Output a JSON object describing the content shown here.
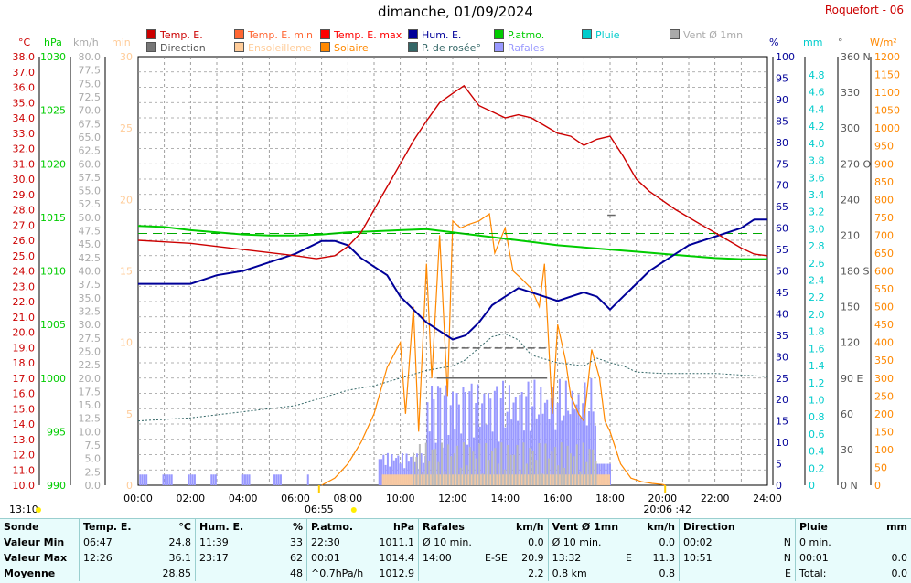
{
  "title": "dimanche, 01/09/2024",
  "station": "Roquefort - 06",
  "legend": [
    {
      "label": "Temp. E.",
      "color": "#cc0000",
      "text_color": "#cc0000"
    },
    {
      "label": "Temp. E. min",
      "color": "#ff6633",
      "text_color": "#ff6633"
    },
    {
      "label": "Temp. E. max",
      "color": "#ff0000",
      "text_color": "#ff0000"
    },
    {
      "label": "Hum. E.",
      "color": "#000099",
      "text_color": "#000099"
    },
    {
      "label": "P.atmo.",
      "color": "#00cc00",
      "text_color": "#00cc00"
    },
    {
      "label": "Pluie",
      "color": "#00cccc",
      "text_color": "#00cccc"
    },
    {
      "label": "Vent Ø 1mn",
      "color": "#aaaaaa",
      "text_color": "#aaaaaa"
    },
    {
      "label": "Direction",
      "color": "#777777",
      "text_color": "#555555"
    },
    {
      "label": "Ensoleilleme",
      "color": "#ffcc99",
      "text_color": "#ffcc99"
    },
    {
      "label": "Solaire",
      "color": "#ff8800",
      "text_color": "#ff8800"
    },
    {
      "label": "P. de rosée°",
      "color": "#336666",
      "text_color": "#336666"
    },
    {
      "label": "Rafales",
      "color": "#9999ff",
      "text_color": "#9999ff"
    }
  ],
  "axes": {
    "temp_unit": "°C",
    "pa_unit": "hPa",
    "wind_unit": "km/h",
    "min_unit": "min",
    "hum_unit": "%",
    "rain_unit": "mm",
    "dir_unit": "°",
    "sol_unit": "W/m²",
    "temp_ticks": [
      "38.0",
      "37.0",
      "36.0",
      "35.0",
      "34.0",
      "33.0",
      "32.0",
      "31.0",
      "30.0",
      "29.0",
      "28.0",
      "27.0",
      "26.0",
      "25.0",
      "24.0",
      "23.0",
      "22.0",
      "21.0",
      "20.0",
      "19.0",
      "18.0",
      "17.0",
      "16.0",
      "15.0",
      "14.0",
      "13.0",
      "12.0",
      "11.0",
      "10.0"
    ],
    "pa_ticks": [
      "1030",
      "1025",
      "1020",
      "1015",
      "1010",
      "1005",
      "1000",
      "995",
      "990"
    ],
    "wind_ticks": [
      "80.0",
      "77.5",
      "75.0",
      "72.5",
      "70.0",
      "67.5",
      "65.0",
      "62.5",
      "60.0",
      "57.5",
      "55.0",
      "52.5",
      "50.0",
      "47.5",
      "45.0",
      "42.5",
      "40.0",
      "37.5",
      "35.0",
      "32.5",
      "30.0",
      "27.5",
      "25.0",
      "22.5",
      "20.0",
      "17.5",
      "15.0",
      "12.5",
      "10.0",
      "7.5",
      "5.0",
      "2.5",
      "0.0"
    ],
    "min_ticks": [
      "30",
      "25",
      "20",
      "15",
      "10",
      "5",
      "0"
    ],
    "hum_ticks": [
      "100",
      "95",
      "90",
      "85",
      "80",
      "75",
      "70",
      "65",
      "60",
      "55",
      "50",
      "45",
      "40",
      "35",
      "30",
      "25",
      "20",
      "15",
      "10",
      "5",
      "0"
    ],
    "rain_ticks": [
      "4.8",
      "4.6",
      "4.4",
      "4.2",
      "4.0",
      "3.8",
      "3.6",
      "3.4",
      "3.2",
      "3.0",
      "2.8",
      "2.6",
      "2.4",
      "2.2",
      "2.0",
      "1.8",
      "1.6",
      "1.4",
      "1.2",
      "1.0",
      "0.8",
      "0.6",
      "0.4",
      "0.2",
      "0"
    ],
    "dir_ticks": [
      "360 N",
      "330",
      "300",
      "270 O",
      "240",
      "210",
      "180 S",
      "150",
      "120",
      "90 E",
      "60",
      "30",
      "0   N"
    ],
    "sol_ticks": [
      "1200",
      "1150",
      "1100",
      "1050",
      "1000",
      "950",
      "900",
      "850",
      "800",
      "750",
      "700",
      "650",
      "600",
      "550",
      "500",
      "450",
      "400",
      "350",
      "300",
      "250",
      "200",
      "150",
      "100",
      "50",
      "0"
    ],
    "time_ticks": [
      "00:00",
      "02:00",
      "04:00",
      "06:00",
      "08:00",
      "10:00",
      "12:00",
      "14:00",
      "16:00",
      "18:00",
      "20:00",
      "22:00",
      "24:00"
    ],
    "sunrise": "06:55",
    "sunset": "20:06",
    "moonrise": "13:10",
    "sun_extra": ":42",
    "moon_extra": "A"
  },
  "chart_data": {
    "type": "line",
    "title": "dimanche, 01/09/2024",
    "x_unit": "hour",
    "series": [
      {
        "name": "Temp. E.",
        "unit": "°C",
        "color": "#cc0000",
        "points": [
          [
            0,
            26.0
          ],
          [
            1,
            25.9
          ],
          [
            2,
            25.8
          ],
          [
            3,
            25.6
          ],
          [
            4,
            25.4
          ],
          [
            5,
            25.2
          ],
          [
            6,
            25.0
          ],
          [
            6.8,
            24.8
          ],
          [
            7.5,
            25.0
          ],
          [
            8,
            25.6
          ],
          [
            8.5,
            26.5
          ],
          [
            9,
            28.0
          ],
          [
            9.5,
            29.5
          ],
          [
            10,
            31.0
          ],
          [
            10.5,
            32.5
          ],
          [
            11,
            33.8
          ],
          [
            11.5,
            35.0
          ],
          [
            12,
            35.6
          ],
          [
            12.43,
            36.1
          ],
          [
            13,
            34.8
          ],
          [
            13.5,
            34.4
          ],
          [
            14,
            34.0
          ],
          [
            14.5,
            34.2
          ],
          [
            15,
            34.0
          ],
          [
            15.5,
            33.5
          ],
          [
            16,
            33.0
          ],
          [
            16.5,
            32.8
          ],
          [
            17,
            32.2
          ],
          [
            17.5,
            32.6
          ],
          [
            18,
            32.8
          ],
          [
            18.5,
            31.5
          ],
          [
            19,
            30.0
          ],
          [
            19.5,
            29.2
          ],
          [
            20,
            28.6
          ],
          [
            20.5,
            28.0
          ],
          [
            21,
            27.5
          ],
          [
            21.5,
            27.0
          ],
          [
            22,
            26.5
          ],
          [
            22.5,
            26.0
          ],
          [
            23,
            25.5
          ],
          [
            23.5,
            25.1
          ],
          [
            24,
            25.0
          ]
        ]
      },
      {
        "name": "Hum. E.",
        "unit": "%",
        "color": "#000099",
        "points": [
          [
            0,
            47
          ],
          [
            1.8,
            47
          ],
          [
            2,
            47
          ],
          [
            2.5,
            48
          ],
          [
            3,
            49
          ],
          [
            4,
            50
          ],
          [
            4.5,
            51
          ],
          [
            5,
            52
          ],
          [
            5.5,
            53
          ],
          [
            6,
            54
          ],
          [
            7,
            57
          ],
          [
            7.5,
            57
          ],
          [
            8,
            56
          ],
          [
            8.5,
            53
          ],
          [
            9,
            51
          ],
          [
            9.5,
            49
          ],
          [
            10,
            44
          ],
          [
            10.5,
            41
          ],
          [
            11,
            38
          ],
          [
            11.5,
            36
          ],
          [
            12,
            34
          ],
          [
            12.5,
            35
          ],
          [
            13,
            38
          ],
          [
            13.5,
            42
          ],
          [
            14,
            44
          ],
          [
            14.5,
            46
          ],
          [
            15,
            45
          ],
          [
            15.5,
            44
          ],
          [
            16,
            43
          ],
          [
            16.5,
            44
          ],
          [
            17,
            45
          ],
          [
            17.5,
            44
          ],
          [
            18,
            41
          ],
          [
            18.5,
            44
          ],
          [
            19,
            47
          ],
          [
            19.5,
            50
          ],
          [
            20,
            52
          ],
          [
            20.5,
            54
          ],
          [
            21,
            56
          ],
          [
            21.5,
            57
          ],
          [
            22,
            58
          ],
          [
            22.5,
            59
          ],
          [
            23,
            60
          ],
          [
            23.5,
            62
          ],
          [
            24,
            62
          ]
        ]
      },
      {
        "name": "P.atmo.",
        "unit": "hPa",
        "color": "#00cc00",
        "points": [
          [
            0,
            1014.2
          ],
          [
            1,
            1014.1
          ],
          [
            2,
            1013.8
          ],
          [
            3,
            1013.6
          ],
          [
            4,
            1013.4
          ],
          [
            5,
            1013.3
          ],
          [
            6,
            1013.3
          ],
          [
            7,
            1013.4
          ],
          [
            8,
            1013.6
          ],
          [
            9,
            1013.7
          ],
          [
            10,
            1013.8
          ],
          [
            11,
            1013.9
          ],
          [
            12,
            1013.6
          ],
          [
            13,
            1013.3
          ],
          [
            14,
            1013.0
          ],
          [
            15,
            1012.7
          ],
          [
            16,
            1012.4
          ],
          [
            17,
            1012.2
          ],
          [
            18,
            1012.0
          ],
          [
            19,
            1011.8
          ],
          [
            20,
            1011.6
          ],
          [
            21,
            1011.4
          ],
          [
            22,
            1011.2
          ],
          [
            23,
            1011.1
          ],
          [
            24,
            1011.1
          ]
        ]
      },
      {
        "name": "P. de rosée°",
        "unit": "°C",
        "color": "#336666",
        "points": [
          [
            0,
            14.2
          ],
          [
            2,
            14.4
          ],
          [
            4,
            14.8
          ],
          [
            6,
            15.2
          ],
          [
            8,
            16.2
          ],
          [
            9,
            16.5
          ],
          [
            10,
            17.0
          ],
          [
            11,
            17.5
          ],
          [
            12,
            17.8
          ],
          [
            12.5,
            18.2
          ],
          [
            13,
            19.0
          ],
          [
            13.5,
            19.7
          ],
          [
            14,
            19.9
          ],
          [
            14.5,
            19.5
          ],
          [
            15,
            18.5
          ],
          [
            16,
            18.0
          ],
          [
            17,
            17.8
          ],
          [
            17.5,
            18.3
          ],
          [
            18,
            18.0
          ],
          [
            18.5,
            17.8
          ],
          [
            19,
            17.4
          ],
          [
            20,
            17.3
          ],
          [
            21,
            17.3
          ],
          [
            22,
            17.3
          ],
          [
            23,
            17.2
          ],
          [
            24,
            17.1
          ]
        ]
      },
      {
        "name": "Solaire",
        "unit": "W/m²",
        "color": "#ff8800",
        "points": [
          [
            7,
            0
          ],
          [
            7.5,
            20
          ],
          [
            8,
            60
          ],
          [
            8.5,
            120
          ],
          [
            9,
            200
          ],
          [
            9.5,
            330
          ],
          [
            10,
            400
          ],
          [
            10.2,
            200
          ],
          [
            10.5,
            500
          ],
          [
            10.7,
            150
          ],
          [
            11,
            620
          ],
          [
            11.2,
            300
          ],
          [
            11.5,
            700
          ],
          [
            11.8,
            250
          ],
          [
            12,
            740
          ],
          [
            12.3,
            720
          ],
          [
            12.6,
            730
          ],
          [
            13,
            740
          ],
          [
            13.4,
            760
          ],
          [
            13.6,
            650
          ],
          [
            14,
            720
          ],
          [
            14.3,
            600
          ],
          [
            14.6,
            580
          ],
          [
            15,
            550
          ],
          [
            15.3,
            500
          ],
          [
            15.5,
            620
          ],
          [
            15.8,
            200
          ],
          [
            16,
            450
          ],
          [
            16.3,
            350
          ],
          [
            16.5,
            250
          ],
          [
            16.8,
            200
          ],
          [
            17,
            180
          ],
          [
            17.3,
            380
          ],
          [
            17.6,
            300
          ],
          [
            17.8,
            180
          ],
          [
            18,
            150
          ],
          [
            18.4,
            60
          ],
          [
            18.8,
            20
          ],
          [
            19.2,
            10
          ],
          [
            19.6,
            5
          ],
          [
            20,
            2
          ],
          [
            20.1,
            0
          ]
        ]
      }
    ],
    "extra_markers": {
      "t_min_dash_hour": 11.0,
      "pressure_ref_dashed": 1013.5
    }
  },
  "stats": {
    "headers": [
      "Sonde",
      "Temp. E.",
      "°C",
      "Hum. E.",
      "%",
      "P.atmo.",
      "hPa",
      "Rafales",
      "km/h",
      "Vent Ø 1mn",
      "km/h",
      "Direction",
      "",
      "Pluie",
      "mm"
    ],
    "rows": [
      {
        "label": "Valeur Min",
        "t_time": "06:47",
        "t_val": "24.8",
        "h_time": "11:39",
        "h_val": "33",
        "p_time": "22:30",
        "p_val": "1011.1",
        "r_time": "Ø 10 min.",
        "r_dir": "",
        "r_val": "0.0",
        "v_time": "Ø 10 min.",
        "v_dir": "",
        "v_val": "0.0",
        "d_time": "00:02",
        "d_val": "N",
        "pl_time": "0 min.",
        "pl_val": ""
      },
      {
        "label": "Valeur Max",
        "t_time": "12:26",
        "t_val": "36.1",
        "h_time": "23:17",
        "h_val": "62",
        "p_time": "00:01",
        "p_val": "1014.4",
        "r_time": "14:00",
        "r_dir": "E-SE",
        "r_val": "20.9",
        "v_time": "13:32",
        "v_dir": "E",
        "v_val": "11.3",
        "d_time": "10:51",
        "d_val": "N",
        "pl_time": "00:01",
        "pl_val": "0.0"
      },
      {
        "label": "Moyenne",
        "t_time": "",
        "t_val": "28.85",
        "h_time": "",
        "h_val": "48",
        "p_time": "^0.7hPa/h",
        "p_val": "1012.9",
        "r_time": "",
        "r_dir": "",
        "r_val": "2.2",
        "v_time": "0.8 km",
        "v_dir": "",
        "v_val": "0.8",
        "d_time": "",
        "d_val": "E",
        "pl_time": "Total:",
        "pl_val": "0.0"
      }
    ]
  }
}
